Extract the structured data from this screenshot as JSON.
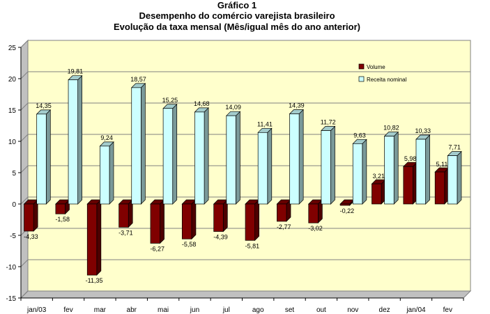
{
  "chart_data": {
    "type": "bar",
    "title": [
      "Gráfico 1",
      "Desempenho do comércio varejista brasileiro",
      "Evolução da taxa mensal (Mês/igual mês do ano anterior)"
    ],
    "categories": [
      "jan/03",
      "fev",
      "mar",
      "abr",
      "mai",
      "jun",
      "jul",
      "ago",
      "set",
      "out",
      "nov",
      "dez",
      "jan/04",
      "fev"
    ],
    "series": [
      {
        "name": "Volume",
        "color": "#800000",
        "values": [
          -4.33,
          -1.58,
          -11.35,
          -3.71,
          -6.27,
          -5.58,
          -4.39,
          -5.81,
          -2.77,
          -3.02,
          -0.22,
          3.21,
          5.98,
          5.11
        ],
        "labels": [
          "-4,33",
          "-1,58",
          "-11,35",
          "-3,71",
          "-6,27",
          "-5,58",
          "-4,39",
          "-5,81",
          "-2,77",
          "-3,02",
          "-0,22",
          "3,21",
          "5,98",
          "5,11"
        ]
      },
      {
        "name": "Receita nominal",
        "color": "#ccffff",
        "values": [
          14.35,
          19.81,
          9.24,
          18.57,
          15.25,
          14.68,
          14.09,
          11.41,
          14.39,
          11.72,
          9.63,
          10.82,
          10.33,
          7.71
        ],
        "labels": [
          "14,35",
          "19,81",
          "9,24",
          "18,57",
          "15,25",
          "14,68",
          "14,09",
          "11,41",
          "14,39",
          "11,72",
          "9,63",
          "10,82",
          "10,33",
          "7,71"
        ]
      }
    ],
    "yticks": [
      25,
      20,
      15,
      10,
      5,
      0,
      -5,
      -10,
      -15
    ],
    "ytick_labels": [
      "25",
      "20",
      "15",
      "10",
      "5",
      "0",
      "-5",
      "-10",
      "-15"
    ],
    "ylim": [
      -15,
      25
    ],
    "grid": true,
    "legend": "top-right",
    "plot_background": "#ffffcc"
  }
}
